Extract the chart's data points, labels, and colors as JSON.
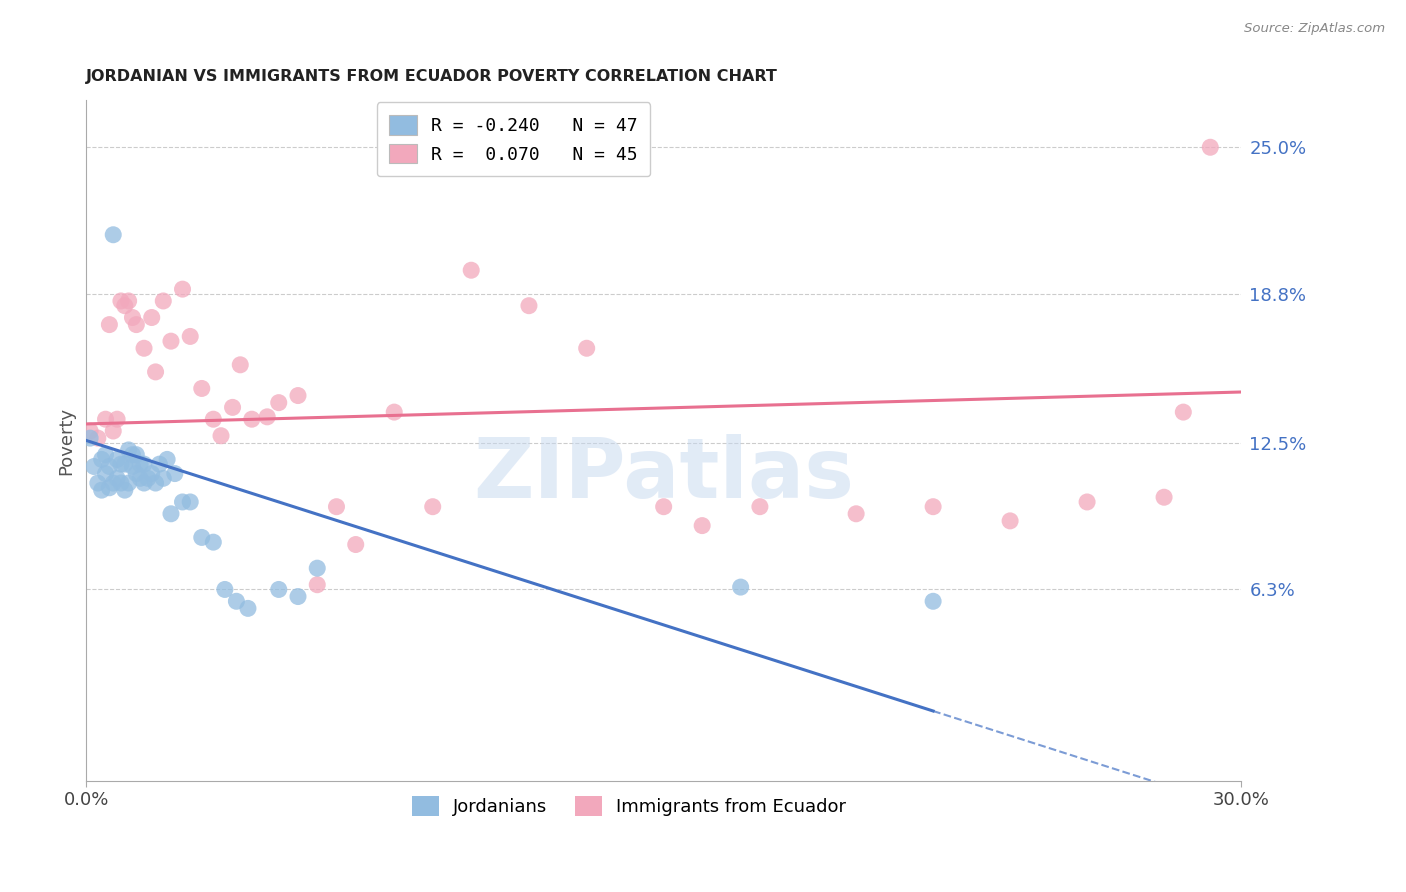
{
  "title": "JORDANIAN VS IMMIGRANTS FROM ECUADOR POVERTY CORRELATION CHART",
  "source": "Source: ZipAtlas.com",
  "ylabel": "Poverty",
  "y_ticks": [
    0.063,
    0.125,
    0.188,
    0.25
  ],
  "y_tick_labels": [
    "6.3%",
    "12.5%",
    "18.8%",
    "25.0%"
  ],
  "xlim": [
    0.0,
    0.3
  ],
  "ylim": [
    -0.018,
    0.27
  ],
  "blue_color": "#92bce0",
  "pink_color": "#f2a8bc",
  "blue_line_color": "#4472c4",
  "pink_line_color": "#e87090",
  "watermark_text": "ZIPatlas",
  "blue_r": -0.24,
  "blue_n": 47,
  "pink_r": 0.07,
  "pink_n": 45,
  "jordanians_x": [
    0.001,
    0.002,
    0.003,
    0.004,
    0.004,
    0.005,
    0.005,
    0.006,
    0.006,
    0.007,
    0.007,
    0.008,
    0.008,
    0.009,
    0.009,
    0.01,
    0.01,
    0.011,
    0.011,
    0.012,
    0.012,
    0.013,
    0.013,
    0.014,
    0.014,
    0.015,
    0.015,
    0.016,
    0.017,
    0.018,
    0.019,
    0.02,
    0.021,
    0.022,
    0.023,
    0.025,
    0.027,
    0.03,
    0.033,
    0.036,
    0.039,
    0.042,
    0.05,
    0.055,
    0.06,
    0.17,
    0.22
  ],
  "jordanians_y": [
    0.127,
    0.115,
    0.108,
    0.105,
    0.118,
    0.112,
    0.12,
    0.106,
    0.115,
    0.108,
    0.213,
    0.11,
    0.118,
    0.108,
    0.116,
    0.105,
    0.116,
    0.108,
    0.122,
    0.115,
    0.12,
    0.112,
    0.12,
    0.11,
    0.116,
    0.108,
    0.116,
    0.11,
    0.112,
    0.108,
    0.116,
    0.11,
    0.118,
    0.095,
    0.112,
    0.1,
    0.1,
    0.085,
    0.083,
    0.063,
    0.058,
    0.055,
    0.063,
    0.06,
    0.072,
    0.064,
    0.058
  ],
  "ecuador_x": [
    0.001,
    0.003,
    0.005,
    0.006,
    0.007,
    0.008,
    0.009,
    0.01,
    0.011,
    0.012,
    0.013,
    0.015,
    0.017,
    0.018,
    0.02,
    0.022,
    0.025,
    0.027,
    0.03,
    0.033,
    0.035,
    0.038,
    0.04,
    0.043,
    0.047,
    0.05,
    0.055,
    0.06,
    0.065,
    0.07,
    0.08,
    0.09,
    0.1,
    0.115,
    0.13,
    0.15,
    0.16,
    0.175,
    0.2,
    0.22,
    0.24,
    0.26,
    0.28,
    0.285,
    0.292
  ],
  "ecuador_y": [
    0.13,
    0.127,
    0.135,
    0.175,
    0.13,
    0.135,
    0.185,
    0.183,
    0.185,
    0.178,
    0.175,
    0.165,
    0.178,
    0.155,
    0.185,
    0.168,
    0.19,
    0.17,
    0.148,
    0.135,
    0.128,
    0.14,
    0.158,
    0.135,
    0.136,
    0.142,
    0.145,
    0.065,
    0.098,
    0.082,
    0.138,
    0.098,
    0.198,
    0.183,
    0.165,
    0.098,
    0.09,
    0.098,
    0.095,
    0.098,
    0.092,
    0.1,
    0.102,
    0.138,
    0.25
  ]
}
